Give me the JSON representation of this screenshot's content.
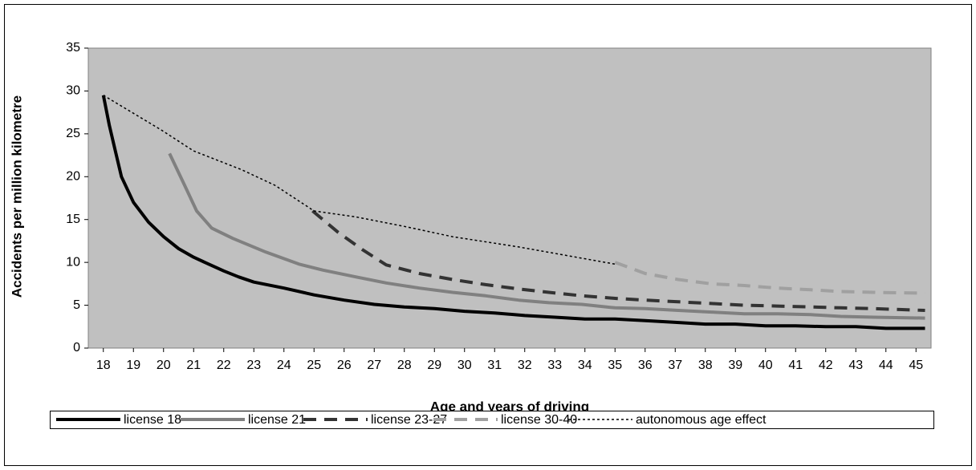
{
  "chart_data": {
    "type": "line",
    "xlabel": "Age and years of driving",
    "ylabel": "Accidents per million kilometre",
    "xlim": [
      17.5,
      45.5
    ],
    "xticks": [
      18,
      19,
      20,
      21,
      22,
      23,
      24,
      25,
      26,
      27,
      28,
      29,
      30,
      31,
      32,
      33,
      34,
      35,
      36,
      37,
      38,
      39,
      40,
      41,
      42,
      43,
      44,
      45
    ],
    "ylim": [
      0,
      35
    ],
    "yticks": [
      0,
      5,
      10,
      15,
      20,
      25,
      30,
      35
    ],
    "legend": "bottom",
    "series": [
      {
        "name": "license 18",
        "color": "#000000",
        "style": "solid",
        "x": [
          18,
          18.2,
          18.4,
          18.6,
          18.8,
          19,
          19.5,
          20,
          20.5,
          21,
          21.5,
          22,
          22.5,
          23,
          24,
          25,
          26,
          27,
          28,
          29,
          30,
          31,
          32,
          33,
          34,
          35,
          36,
          37,
          38,
          39,
          40,
          41,
          42,
          43,
          44,
          45.3
        ],
        "values": [
          29.5,
          26,
          23,
          20,
          18.5,
          17,
          14.7,
          13,
          11.6,
          10.6,
          9.8,
          9,
          8.3,
          7.7,
          7,
          6.2,
          5.6,
          5.1,
          4.8,
          4.6,
          4.3,
          4.1,
          3.8,
          3.6,
          3.4,
          3.4,
          3.2,
          3,
          2.8,
          2.8,
          2.6,
          2.6,
          2.5,
          2.5,
          2.3,
          2.3
        ]
      },
      {
        "name": "license 21",
        "color": "#808080",
        "style": "solid",
        "x": [
          20.2,
          20.7,
          21.1,
          21.6,
          22.3,
          23.4,
          24.5,
          25.3,
          26.4,
          27.4,
          28.5,
          29.6,
          30.7,
          31.8,
          32.8,
          33.9,
          35,
          36,
          37.1,
          38.2,
          39.3,
          40.4,
          41.5,
          42.5,
          43.6,
          45.3
        ],
        "values": [
          22.7,
          19,
          16,
          14,
          12.8,
          11.2,
          9.8,
          9.1,
          8.3,
          7.6,
          7,
          6.5,
          6.1,
          5.6,
          5.3,
          5.1,
          4.7,
          4.6,
          4.4,
          4.2,
          4,
          4,
          3.9,
          3.7,
          3.6,
          3.5
        ]
      },
      {
        "name": "license 23-27",
        "color": "#333333",
        "style": "dashed",
        "x": [
          24.95,
          25.8,
          26.6,
          27.4,
          28.5,
          29.6,
          30.7,
          31.8,
          32.8,
          33.9,
          35,
          36,
          37.1,
          38.2,
          39.3,
          40.4,
          41.5,
          42.5,
          43.6,
          45.3
        ],
        "values": [
          16,
          13.5,
          11.5,
          9.7,
          8.7,
          8,
          7.4,
          6.9,
          6.5,
          6.1,
          5.8,
          5.6,
          5.4,
          5.2,
          5,
          4.9,
          4.8,
          4.7,
          4.6,
          4.4
        ]
      },
      {
        "name": "license 30-40",
        "color": "#a0a0a0",
        "style": "dashed",
        "x": [
          35,
          36,
          37.1,
          38.2,
          39.3,
          40.4,
          41.5,
          42.5,
          43.6,
          45.3
        ],
        "values": [
          10,
          8.7,
          8,
          7.5,
          7.3,
          7,
          6.8,
          6.6,
          6.5,
          6.4
        ]
      },
      {
        "name": "autonomous age effect",
        "color": "#000000",
        "style": "dotted",
        "x": [
          18,
          19.9,
          21,
          22.6,
          23.7,
          25,
          26.4,
          28,
          29.6,
          31.8,
          33.4,
          35
        ],
        "values": [
          29.5,
          25.5,
          23,
          20.8,
          19,
          16,
          15.3,
          14.2,
          13,
          11.8,
          10.8,
          9.8
        ]
      }
    ]
  }
}
